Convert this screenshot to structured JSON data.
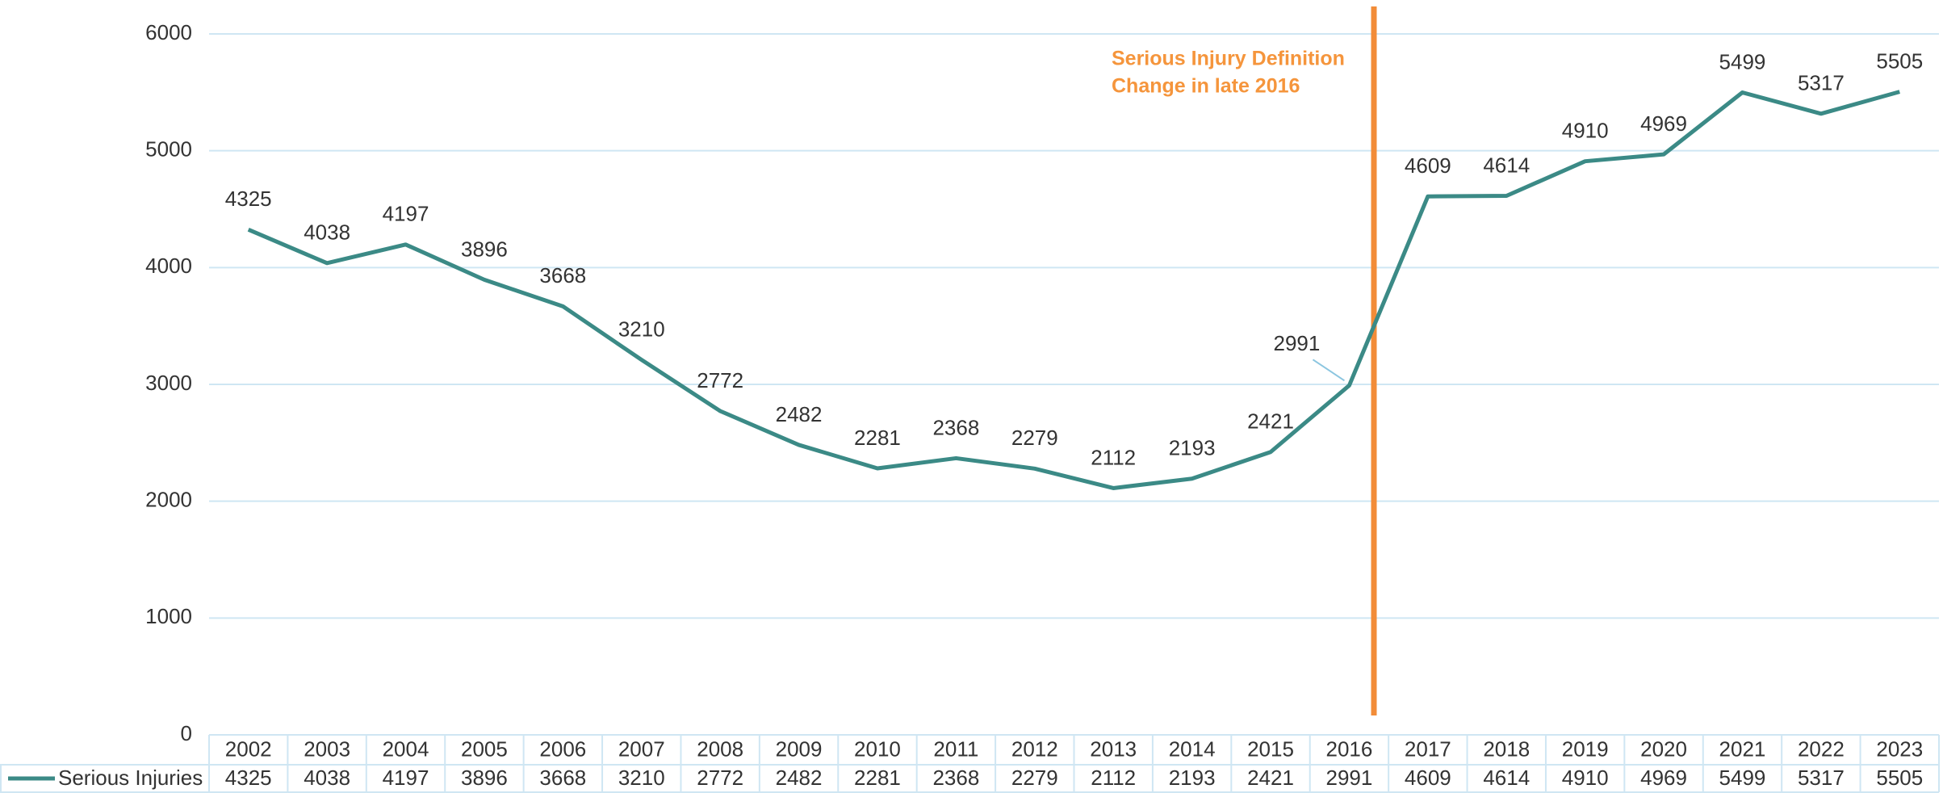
{
  "chart_data": {
    "type": "line",
    "categories": [
      "2002",
      "2003",
      "2004",
      "2005",
      "2006",
      "2007",
      "2008",
      "2009",
      "2010",
      "2011",
      "2012",
      "2013",
      "2014",
      "2015",
      "2016",
      "2017",
      "2018",
      "2019",
      "2020",
      "2021",
      "2022",
      "2023"
    ],
    "series": [
      {
        "name": "Serious Injuries",
        "color": "#3b8a86",
        "values": [
          4325,
          4038,
          4197,
          3896,
          3668,
          3210,
          2772,
          2482,
          2281,
          2368,
          2279,
          2112,
          2193,
          2421,
          2991,
          4609,
          4614,
          4910,
          4969,
          5499,
          5317,
          5505
        ]
      }
    ],
    "ylim": [
      0,
      6000
    ],
    "yticks": [
      0,
      1000,
      2000,
      3000,
      4000,
      5000,
      6000
    ],
    "grid": true,
    "annotation": [
      "Serious Injury Definition",
      "Change in late 2016"
    ],
    "data_table": true
  }
}
